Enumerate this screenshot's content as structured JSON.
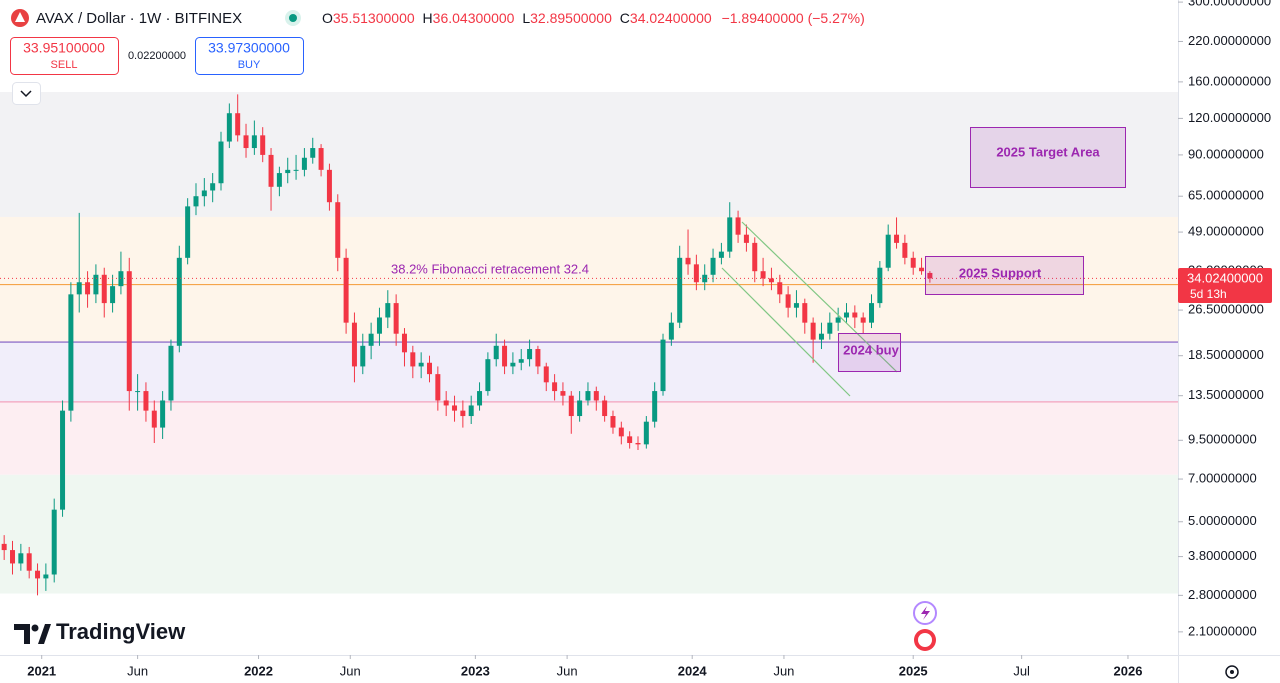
{
  "header": {
    "symbol": "AVAX / Dollar · 1W · BITFINEX",
    "ohlc": [
      {
        "key": "O",
        "value": "35.51300000"
      },
      {
        "key": "H",
        "value": "36.04300000"
      },
      {
        "key": "L",
        "value": "32.89500000"
      },
      {
        "key": "C",
        "value": "34.02400000"
      }
    ],
    "change": "−1.89400000 (−5.27%)"
  },
  "trade": {
    "sell_price": "33.95100000",
    "sell": "SELL",
    "spread": "0.02200000",
    "buy_price": "33.97300000",
    "buy": "BUY"
  },
  "price_tag": {
    "price": "34.02400000",
    "countdown": "5d 13h"
  },
  "logo": "TradingView",
  "annotations": {
    "fib": "38.2% Fibonacci retracement 32.4",
    "target": "2025 Target Area",
    "support": "2025 Support",
    "buy": "2024 buy"
  },
  "chart_data": {
    "type": "candlestick",
    "log_scale": true,
    "up_color": "#089981",
    "down_color": "#f23645",
    "x": [
      0,
      2,
      4,
      6,
      8,
      10,
      12,
      14,
      16,
      18,
      20,
      22,
      24,
      26,
      28,
      30,
      32,
      34,
      36,
      38,
      40,
      42,
      44,
      46,
      48,
      50,
      52,
      54,
      56,
      58,
      60,
      62,
      64,
      66,
      68,
      70,
      72,
      74,
      76,
      78,
      80,
      82,
      84,
      86,
      88,
      90,
      92,
      94,
      96,
      98,
      100,
      102,
      104,
      106,
      108,
      110,
      112,
      114,
      116,
      118,
      120,
      122,
      124,
      126,
      128,
      130,
      132,
      134,
      136,
      138,
      140,
      142,
      144,
      146,
      148,
      150,
      152,
      154,
      156,
      158,
      160,
      162,
      164,
      166,
      168,
      170,
      172,
      174,
      176,
      178,
      180,
      182,
      184,
      186,
      188,
      190,
      192,
      194,
      196,
      198,
      200,
      202,
      204,
      206,
      208,
      210,
      212,
      214,
      216,
      218,
      220,
      222
    ],
    "open": [
      4.2,
      4.0,
      3.6,
      3.9,
      3.4,
      3.2,
      3.3,
      5.5,
      12,
      30,
      33,
      30,
      35,
      28,
      32,
      36,
      14,
      14,
      12,
      10.5,
      13,
      20,
      40,
      60,
      65,
      68,
      72,
      100,
      125,
      105,
      95,
      105,
      90,
      70,
      78,
      80,
      80,
      88,
      95,
      80,
      62,
      40,
      24,
      17,
      20,
      22,
      25,
      28,
      22,
      19,
      17,
      17.5,
      16,
      13,
      12.5,
      12,
      11.5,
      12.5,
      14,
      18,
      20,
      17,
      17.5,
      18,
      19.5,
      17,
      15,
      14,
      13.5,
      11.5,
      13,
      14,
      13,
      11.5,
      10.5,
      9.8,
      9.3,
      9.2,
      11,
      14,
      21,
      24,
      40,
      38,
      33,
      35,
      40,
      42,
      55,
      48,
      45,
      36,
      34,
      33,
      30,
      27,
      28,
      24,
      21,
      22,
      24,
      25,
      26,
      25,
      24,
      28,
      37,
      48,
      45,
      40,
      37,
      35.513
    ],
    "high": [
      4.5,
      4.3,
      4.2,
      4.1,
      3.6,
      3.6,
      6.0,
      13,
      33,
      57,
      36,
      38,
      37,
      35,
      42,
      40,
      16,
      15,
      13,
      14,
      21,
      44,
      64,
      72,
      75,
      78,
      108,
      135,
      145,
      115,
      118,
      112,
      95,
      82,
      88,
      90,
      95,
      103,
      98,
      84,
      66,
      43,
      26,
      22,
      24,
      27,
      31,
      30,
      23,
      20,
      19,
      18.5,
      17,
      14,
      13.5,
      13,
      13.5,
      15,
      19,
      22,
      21,
      19,
      19.5,
      21,
      20,
      17.5,
      16,
      15,
      14,
      14,
      15,
      14.5,
      13.5,
      12,
      11,
      10.2,
      9.8,
      11.5,
      15,
      22,
      26,
      44,
      50,
      41,
      38,
      43,
      45,
      62,
      58,
      52,
      47,
      40,
      37,
      35,
      32,
      31,
      29,
      25,
      24,
      26,
      27,
      28,
      27.5,
      26,
      30,
      39,
      52,
      55,
      48,
      42,
      40,
      36.043
    ],
    "low": [
      3.7,
      3.3,
      3.4,
      3.2,
      2.8,
      2.9,
      3.1,
      5.2,
      11,
      26,
      27,
      28,
      25,
      26,
      30,
      12,
      12,
      11,
      9.3,
      9.6,
      12,
      19,
      38,
      56,
      60,
      62,
      68,
      95,
      100,
      88,
      90,
      85,
      58,
      65,
      72,
      74,
      76,
      84,
      76,
      58,
      36,
      22,
      15,
      16,
      18,
      20,
      23,
      20,
      17,
      15.5,
      15.5,
      15,
      12,
      11.5,
      11,
      10.5,
      10.8,
      12,
      13.5,
      17,
      16,
      16,
      16.5,
      17,
      16,
      14,
      13,
      12.5,
      10,
      11,
      12.5,
      12,
      11,
      10,
      9.2,
      8.9,
      8.8,
      8.9,
      10.5,
      13.5,
      20,
      23,
      35,
      31,
      31,
      33,
      38,
      40,
      45,
      42,
      33,
      32,
      31,
      28,
      25,
      25,
      22,
      17.5,
      19.5,
      21,
      22.5,
      24,
      23,
      22,
      23,
      27,
      36,
      43,
      38,
      35,
      35,
      32.895
    ],
    "close": [
      4.0,
      3.6,
      3.9,
      3.4,
      3.2,
      3.3,
      5.5,
      12,
      30,
      33,
      30,
      35,
      28,
      32,
      36,
      14,
      14,
      12,
      10.5,
      13,
      20,
      40,
      60,
      65,
      68,
      72,
      100,
      125,
      105,
      95,
      105,
      90,
      70,
      78,
      80,
      80,
      88,
      95,
      80,
      62,
      40,
      24,
      17,
      20,
      22,
      25,
      28,
      22,
      19,
      17,
      17.5,
      16,
      13,
      12.5,
      12,
      11.5,
      12.5,
      14,
      18,
      20,
      17,
      17.5,
      18,
      19.5,
      17,
      15,
      14,
      13.5,
      11.5,
      13,
      14,
      13,
      11.5,
      10.5,
      9.8,
      9.3,
      9.2,
      11,
      14,
      21,
      24,
      40,
      38,
      33,
      35,
      40,
      42,
      55,
      48,
      45,
      36,
      34,
      33,
      30,
      27,
      28,
      24,
      21,
      22,
      24,
      25,
      26,
      25,
      24,
      28,
      37,
      48,
      45,
      40,
      37,
      36,
      34.024
    ],
    "ylim": [
      1.75,
      305
    ],
    "yticks": [
      {
        "value": 300,
        "label": "300.00000000"
      },
      {
        "value": 220,
        "label": "220.00000000"
      },
      {
        "value": 160,
        "label": "160.00000000"
      },
      {
        "value": 120,
        "label": "120.00000000"
      },
      {
        "value": 90,
        "label": "90.00000000"
      },
      {
        "value": 65,
        "label": "65.00000000"
      },
      {
        "value": 49,
        "label": "49.00000000"
      },
      {
        "value": 36,
        "label": "36.00000000"
      },
      {
        "value": 26.5,
        "label": "26.50000000"
      },
      {
        "value": 18.5,
        "label": "18.50000000"
      },
      {
        "value": 13.5,
        "label": "13.50000000"
      },
      {
        "value": 9.5,
        "label": "9.50000000"
      },
      {
        "value": 7,
        "label": "7.00000000"
      },
      {
        "value": 5,
        "label": "5.00000000"
      },
      {
        "value": 3.8,
        "label": "3.80000000"
      },
      {
        "value": 2.8,
        "label": "2.80000000"
      },
      {
        "value": 2.1,
        "label": "2.10000000"
      }
    ],
    "xlim": [
      -1,
      281.5
    ],
    "xticks": [
      {
        "value": 9,
        "label": "2021"
      },
      {
        "value": 32,
        "label": "Jun"
      },
      {
        "value": 61,
        "label": "2022"
      },
      {
        "value": 83,
        "label": "Jun"
      },
      {
        "value": 113,
        "label": "2023"
      },
      {
        "value": 135,
        "label": "Jun"
      },
      {
        "value": 165,
        "label": "2024"
      },
      {
        "value": 187,
        "label": "Jun"
      },
      {
        "value": 218,
        "label": "2025"
      },
      {
        "value": 244,
        "label": "Jul"
      },
      {
        "value": 269.5,
        "label": "2026"
      }
    ],
    "fib_levels": [
      147.7,
      55.2,
      20.6,
      12.86,
      7.24,
      2.84
    ],
    "fib_colors": [
      "#f2f2f4",
      "#fef5ea",
      "#f1eefa",
      "#fdeef2",
      "#eff7f1"
    ],
    "fib_lines": [
      {
        "value": 32.4,
        "color": "#f5a54a"
      },
      {
        "value": 20.6,
        "color": "#7e57c2"
      },
      {
        "value": 12.86,
        "color": "#f4a3bd"
      }
    ]
  }
}
